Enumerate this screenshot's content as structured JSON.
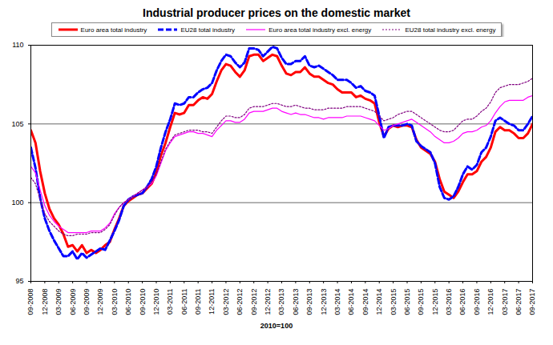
{
  "chart_data": {
    "type": "line",
    "title": "Industrial producer prices on the domestic market",
    "x_label": "2010=100",
    "categories": [
      "09-2008",
      null,
      null,
      "12-2008",
      null,
      null,
      "03-2009",
      null,
      null,
      "06-2009",
      null,
      null,
      "09-2009",
      null,
      null,
      "12-2009",
      null,
      null,
      "03-2010",
      null,
      null,
      "06-2010",
      null,
      null,
      "09-2010",
      null,
      null,
      "12-2010",
      null,
      null,
      "03-2011",
      null,
      null,
      "06-2011",
      null,
      null,
      "09-2011",
      null,
      null,
      "12-2011",
      null,
      null,
      "03-2012",
      null,
      null,
      "06-2012",
      null,
      null,
      "09-2012",
      null,
      null,
      "12-2012",
      null,
      null,
      "03-2013",
      null,
      null,
      "06-2013",
      null,
      null,
      "09-2013",
      null,
      null,
      "12-2013",
      null,
      null,
      "03-2014",
      null,
      null,
      "06-2014",
      null,
      null,
      "09-2014",
      null,
      null,
      "12-2014",
      null,
      null,
      "03-2015",
      null,
      null,
      "06-2015",
      null,
      null,
      "09-2015",
      null,
      null,
      "12-2015",
      null,
      null,
      "03-2016",
      null,
      null,
      "06-2016",
      null,
      null,
      "09-2016",
      null,
      null,
      "12-2016",
      null,
      null,
      "03-2017",
      null,
      null,
      "06-2017",
      null,
      null,
      "09-2017"
    ],
    "ylim": [
      95,
      110
    ],
    "yticks": [
      95,
      100,
      105,
      110
    ],
    "grid": true,
    "legend": "top",
    "series": [
      {
        "name": "Euro area total industry",
        "color": "#ff0000",
        "line_style": "solid",
        "values": [
          104.6,
          103.8,
          102.0,
          100.6,
          99.6,
          99.0,
          98.6,
          98.0,
          97.2,
          97.3,
          96.9,
          97.3,
          96.8,
          97.0,
          96.8,
          97.0,
          97.3,
          97.5,
          98.3,
          99.0,
          99.8,
          100.1,
          100.3,
          100.5,
          100.6,
          100.9,
          101.2,
          101.9,
          103.0,
          103.8,
          104.8,
          105.7,
          105.6,
          105.7,
          106.2,
          106.2,
          106.5,
          106.7,
          106.6,
          106.9,
          107.7,
          108.4,
          108.8,
          108.7,
          108.3,
          108.0,
          108.4,
          109.3,
          109.4,
          109.4,
          109.0,
          109.2,
          109.4,
          109.3,
          108.7,
          108.2,
          108.1,
          108.3,
          108.3,
          108.6,
          108.2,
          108.0,
          108.0,
          107.8,
          107.6,
          107.5,
          107.2,
          107.0,
          107.0,
          107.0,
          106.7,
          106.8,
          106.6,
          106.5,
          106.3,
          105.1,
          104.2,
          104.7,
          104.9,
          104.8,
          104.9,
          104.9,
          104.8,
          104.0,
          103.5,
          103.3,
          103.1,
          102.6,
          101.5,
          100.7,
          100.5,
          100.3,
          100.7,
          101.3,
          101.8,
          101.8,
          102.0,
          102.6,
          102.9,
          103.5,
          104.5,
          104.8,
          104.6,
          104.6,
          104.4,
          104.1,
          104.1,
          104.4,
          105.0
        ]
      },
      {
        "name": "EU28 total industry",
        "color": "#0000ff",
        "line_style": "dashed",
        "values": [
          103.5,
          102.2,
          100.3,
          99.0,
          98.2,
          97.6,
          97.1,
          96.6,
          96.6,
          96.9,
          96.4,
          96.8,
          96.5,
          96.7,
          96.9,
          97.1,
          97.0,
          97.6,
          98.2,
          98.9,
          99.8,
          100.2,
          100.4,
          100.5,
          100.6,
          101.0,
          101.5,
          102.3,
          103.5,
          104.5,
          105.3,
          106.3,
          106.2,
          106.3,
          106.7,
          106.7,
          107.0,
          107.2,
          107.3,
          107.6,
          108.4,
          109.0,
          109.4,
          109.3,
          108.9,
          108.6,
          108.9,
          109.8,
          109.8,
          109.7,
          109.3,
          109.6,
          109.9,
          109.8,
          109.2,
          108.8,
          108.8,
          109.0,
          109.0,
          109.3,
          108.7,
          108.6,
          108.7,
          108.5,
          108.3,
          108.1,
          107.8,
          107.8,
          107.8,
          107.6,
          107.3,
          107.4,
          107.1,
          107.0,
          106.8,
          105.5,
          104.1,
          104.8,
          104.9,
          104.9,
          104.9,
          105.0,
          104.9,
          103.9,
          103.6,
          103.4,
          103.2,
          102.5,
          101.0,
          100.3,
          100.2,
          100.4,
          101.0,
          101.8,
          102.3,
          102.1,
          102.4,
          103.2,
          103.5,
          104.2,
          105.2,
          105.4,
          105.2,
          105.0,
          104.9,
          104.6,
          104.6,
          105.0,
          105.5
        ]
      },
      {
        "name": "Euro area total industry excl. energy",
        "color": "#ff00ff",
        "line_style": "solid",
        "values": [
          102.3,
          101.9,
          100.8,
          99.8,
          99.2,
          98.8,
          98.5,
          98.3,
          98.1,
          98.1,
          98.1,
          98.1,
          98.1,
          98.2,
          98.2,
          98.2,
          98.4,
          98.7,
          99.3,
          99.7,
          100.0,
          100.2,
          100.4,
          100.6,
          100.8,
          101.0,
          101.2,
          101.7,
          102.5,
          103.3,
          103.8,
          104.2,
          104.3,
          104.4,
          104.5,
          104.5,
          104.4,
          104.4,
          104.3,
          104.2,
          104.6,
          104.9,
          105.2,
          105.2,
          105.1,
          105.1,
          105.3,
          105.7,
          105.8,
          105.8,
          105.8,
          105.9,
          106.0,
          106.0,
          105.8,
          105.7,
          105.6,
          105.7,
          105.6,
          105.6,
          105.5,
          105.4,
          105.4,
          105.3,
          105.4,
          105.4,
          105.4,
          105.4,
          105.5,
          105.5,
          105.5,
          105.5,
          105.4,
          105.3,
          105.2,
          104.9,
          104.6,
          104.7,
          104.9,
          105.0,
          105.1,
          105.2,
          105.3,
          105.1,
          104.9,
          104.7,
          104.5,
          104.2,
          104.0,
          103.8,
          103.8,
          103.9,
          104.1,
          104.4,
          104.5,
          104.5,
          104.6,
          104.8,
          104.9,
          105.2,
          105.7,
          106.1,
          106.4,
          106.5,
          106.5,
          106.5,
          106.5,
          106.7,
          106.8
        ]
      },
      {
        "name": "EU28 total industry excl. energy",
        "color": "#800080",
        "line_style": "dotted",
        "values": [
          101.6,
          101.2,
          100.2,
          99.3,
          98.8,
          98.5,
          98.2,
          98.0,
          97.9,
          97.9,
          98.0,
          98.0,
          98.0,
          98.1,
          98.1,
          98.1,
          98.3,
          98.6,
          99.2,
          99.7,
          100.0,
          100.2,
          100.4,
          100.6,
          100.8,
          101.0,
          101.3,
          101.8,
          102.6,
          103.4,
          103.9,
          104.3,
          104.4,
          104.5,
          104.6,
          104.6,
          104.6,
          104.5,
          104.5,
          104.4,
          104.8,
          105.2,
          105.5,
          105.5,
          105.4,
          105.4,
          105.6,
          106.0,
          106.1,
          106.1,
          106.1,
          106.2,
          106.3,
          106.3,
          106.2,
          106.1,
          106.1,
          106.2,
          106.1,
          106.0,
          106.0,
          105.9,
          105.9,
          105.9,
          106.0,
          106.0,
          106.0,
          106.0,
          106.1,
          106.1,
          106.1,
          106.1,
          106.0,
          105.9,
          105.8,
          105.5,
          105.2,
          105.3,
          105.4,
          105.6,
          105.7,
          105.8,
          105.8,
          105.6,
          105.4,
          105.2,
          105.0,
          104.8,
          104.6,
          104.5,
          104.5,
          104.6,
          104.9,
          105.2,
          105.3,
          105.3,
          105.5,
          105.8,
          106.0,
          106.4,
          107.0,
          107.3,
          107.4,
          107.5,
          107.5,
          107.5,
          107.6,
          107.7,
          107.9
        ]
      }
    ]
  }
}
